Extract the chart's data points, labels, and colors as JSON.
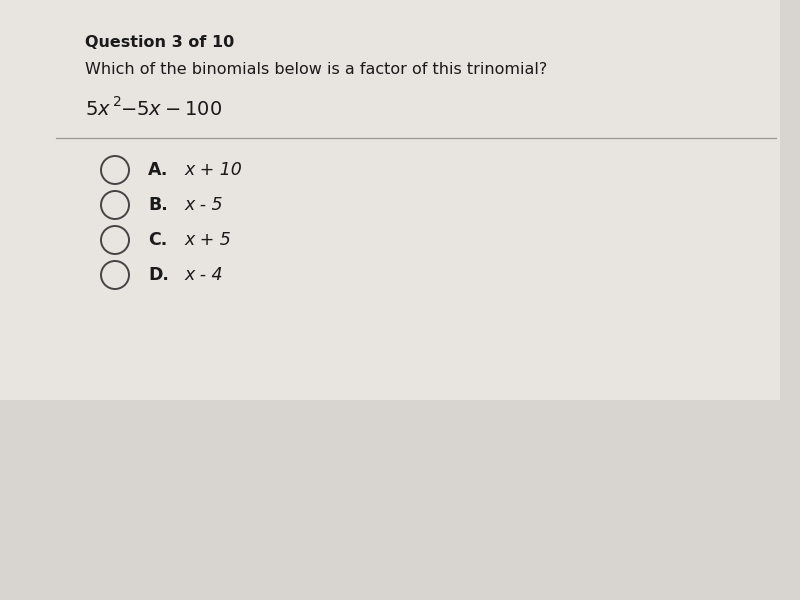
{
  "background_color": "#d8d4cf",
  "content_bg": "#e8e4df",
  "question_label": "Question 3 of 10",
  "question_text": "Which of the binomials below is a factor of this trinomial?",
  "options": [
    {
      "label": "A.",
      "expression": " x + 10"
    },
    {
      "label": "B.",
      "expression": " x - 5"
    },
    {
      "label": "C.",
      "expression": " x + 5"
    },
    {
      "label": "D.",
      "expression": " x - 4"
    }
  ],
  "text_color": "#1a1a1a",
  "divider_color": "#999999",
  "circle_color": "#444444",
  "question_label_fontsize": 11.5,
  "question_text_fontsize": 11.5,
  "trinomial_fontsize": 13,
  "option_fontsize": 12.5
}
